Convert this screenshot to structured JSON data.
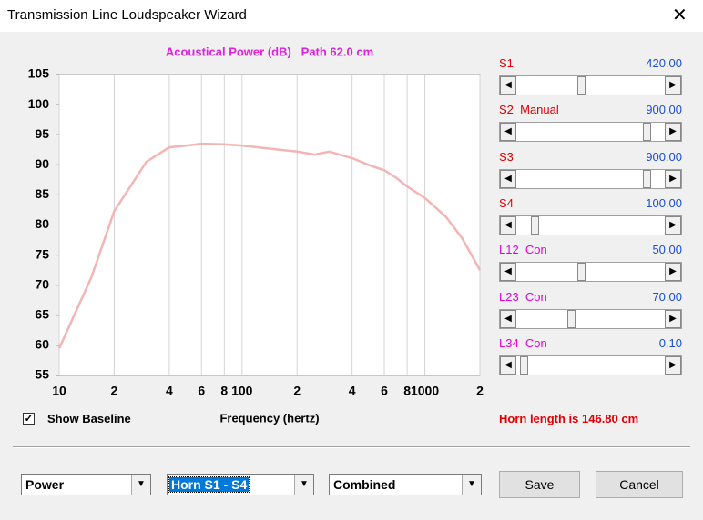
{
  "window": {
    "title": "Transmission Line Loudspeaker Wizard"
  },
  "chart_data": {
    "type": "line",
    "title": "Acoustical Power (dB)   Path 62.0 cm",
    "x_label": "Frequency (hertz)",
    "x": [
      10,
      15,
      20,
      30,
      40,
      50,
      60,
      80,
      100,
      150,
      200,
      250,
      300,
      400,
      500,
      600,
      700,
      800,
      1000,
      1300,
      1600,
      2000
    ],
    "series": [
      {
        "color": "#f4b4b4",
        "values": [
          59.5,
          71.3,
          82.3,
          90.5,
          92.9,
          93.2,
          93.5,
          93.4,
          93.2,
          92.6,
          92.2,
          91.7,
          92.2,
          91.1,
          89.9,
          89.1,
          87.8,
          86.4,
          84.5,
          81.4,
          77.8,
          72.5
        ]
      }
    ],
    "xscale": "log",
    "xlim": [
      10,
      2000
    ],
    "ylim": [
      55,
      105
    ],
    "xticks": [
      10,
      {
        "value": 20,
        "label": "2"
      },
      {
        "value": 40,
        "label": "4"
      },
      {
        "value": 60,
        "label": "6"
      },
      {
        "value": 80,
        "label": "8"
      },
      100,
      {
        "value": 200,
        "label": "2"
      },
      {
        "value": 400,
        "label": "4"
      },
      {
        "value": 600,
        "label": "6"
      },
      {
        "value": 800,
        "label": "8"
      },
      1000,
      {
        "value": 2000,
        "label": "2"
      }
    ],
    "yticks": [
      55,
      60,
      65,
      70,
      75,
      80,
      85,
      90,
      95,
      100,
      105
    ],
    "xgrid": true
  },
  "sliders": [
    {
      "label": "S1",
      "value": "420.00",
      "label_color": "#e00000"
    },
    {
      "label": "S2  Manual",
      "value": "900.00",
      "label_color": "#e00000"
    },
    {
      "label": "S3",
      "value": "900.00",
      "label_color": "#e00000"
    },
    {
      "label": "S4",
      "value": "100.00",
      "label_color": "#e00000"
    },
    {
      "label": "L12  Con",
      "value": "50.00",
      "label_color": "#e000e0"
    },
    {
      "label": "L23  Con",
      "value": "70.00",
      "label_color": "#e000e0"
    },
    {
      "label": "L34  Con",
      "value": "0.10",
      "label_color": "#e000e0"
    }
  ],
  "show_baseline": {
    "label": "Show Baseline",
    "checked": true
  },
  "horn_length": "Horn length is 146.80 cm",
  "dropdowns": [
    "Power",
    "Horn S1 - S4",
    "Combined"
  ],
  "buttons": [
    "Save",
    "Cancel"
  ]
}
